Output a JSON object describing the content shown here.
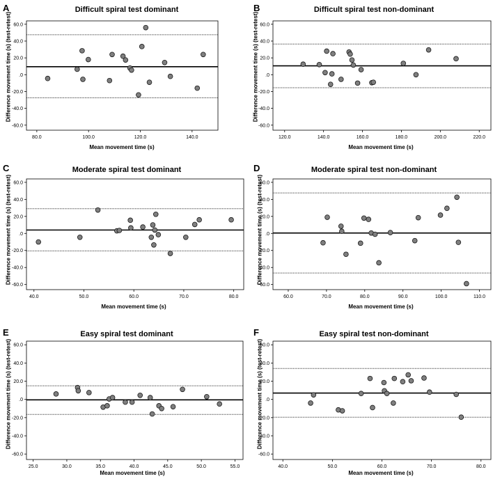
{
  "chart_data": [
    {
      "letter": "A",
      "type": "scatter",
      "title": "Difficult spiral test dominant",
      "xlabel": "Mean movement time (s)",
      "ylabel": "Difference movement time (s) (test-retest)",
      "xlim": [
        76,
        150
      ],
      "ylim": [
        -66,
        64
      ],
      "xticks": [
        80,
        100,
        120,
        140
      ],
      "xtick_labels": [
        "80.0",
        "100.0",
        "120.0",
        "140.0"
      ],
      "yticks": [
        -60,
        -40,
        -20,
        0,
        20,
        40,
        60
      ],
      "ytick_labels": [
        "-60.0",
        "-40.0",
        "-20.0",
        ".0",
        "20.0",
        "40.0",
        "60.0"
      ],
      "mean_line": 9.5,
      "upper_loa": 47.5,
      "lower_loa": -27.5,
      "x": [
        84.2,
        95.6,
        97.5,
        97.8,
        99.9,
        108.1,
        109.1,
        113.3,
        114.3,
        116.0,
        116.6,
        119.3,
        120.6,
        122.1,
        123.5,
        129.4,
        131.6,
        142.0,
        144.3
      ],
      "y": [
        -4.5,
        6.5,
        28.5,
        -5.5,
        18.0,
        -7.0,
        24.0,
        22.0,
        17.5,
        8.0,
        5.5,
        -24.0,
        33.5,
        56.0,
        -9.0,
        14.5,
        -2.0,
        -16.0,
        24.0
      ]
    },
    {
      "letter": "B",
      "type": "scatter",
      "title": "Difficult spiral test non-dominant",
      "xlabel": "Mean movement time (s)",
      "ylabel": "Difference movement time (s) (test-retest)",
      "xlim": [
        114,
        226
      ],
      "ylim": [
        -66,
        64
      ],
      "xticks": [
        120,
        140,
        160,
        180,
        200,
        220
      ],
      "xtick_labels": [
        "120.0",
        "140.0",
        "160.0",
        "180.0",
        "200.0",
        "220.0"
      ],
      "yticks": [
        -60,
        -40,
        -20,
        0,
        20,
        40,
        60
      ],
      "ytick_labels": [
        "-60.0",
        "-40.0",
        "-20.0",
        ".0",
        "20.0",
        "40.0",
        "60.0"
      ],
      "mean_line": 10.5,
      "upper_loa": 36.5,
      "lower_loa": -15.5,
      "x": [
        129.5,
        137.8,
        140.8,
        141.6,
        143.6,
        144.3,
        144.8,
        149.0,
        153.1,
        153.7,
        154.6,
        155.3,
        157.5,
        159.3,
        164.8,
        165.6,
        181.0,
        187.5,
        194.0,
        208.1
      ],
      "y": [
        12.5,
        12.0,
        2.5,
        28.0,
        -11.5,
        1.0,
        25.0,
        -5.5,
        27.0,
        24.5,
        17.5,
        11.5,
        -10.0,
        6.0,
        -9.5,
        -9.0,
        13.5,
        0.0,
        29.5,
        19.0
      ]
    },
    {
      "letter": "C",
      "type": "scatter",
      "title": "Moderate spiral test dominant",
      "xlabel": "Mean movement time (s)",
      "ylabel": "Difference movement time (s) (test-retest)",
      "xlim": [
        38.5,
        82
      ],
      "ylim": [
        -66,
        64
      ],
      "xticks": [
        40,
        50,
        60,
        70,
        80
      ],
      "xtick_labels": [
        "40.0",
        "50.0",
        "60.0",
        "70.0",
        "80.0"
      ],
      "yticks": [
        -60,
        -40,
        -20,
        0,
        20,
        40,
        60
      ],
      "ytick_labels": [
        "-60.0",
        "-40.0",
        "-20.0",
        ".0",
        "20.0",
        "40.0",
        "60.0"
      ],
      "mean_line": 4.0,
      "upper_loa": 29.0,
      "lower_loa": -20.5,
      "x": [
        40.9,
        49.2,
        52.8,
        56.6,
        57.1,
        59.3,
        59.4,
        61.8,
        63.5,
        63.8,
        64.0,
        64.2,
        64.4,
        64.9,
        67.3,
        70.4,
        72.2,
        73.1,
        79.5
      ],
      "y": [
        -10.0,
        -4.5,
        27.5,
        3.0,
        3.5,
        15.5,
        6.5,
        7.5,
        -4.5,
        10.0,
        -13.5,
        4.0,
        22.5,
        -1.5,
        -23.5,
        -4.5,
        10.5,
        16.0,
        16.0
      ]
    },
    {
      "letter": "D",
      "type": "scatter",
      "title": "Moderate spiral test non-dominant",
      "xlabel": "Mean movement time (s)",
      "ylabel": "Difference movement time (s) (test-retest)",
      "xlim": [
        56,
        113
      ],
      "ylim": [
        -66,
        64
      ],
      "xticks": [
        60,
        70,
        80,
        90,
        100,
        110
      ],
      "xtick_labels": [
        "60.0",
        "70.0",
        "80.0",
        "90.0",
        "100.0",
        "110.0"
      ],
      "yticks": [
        -60,
        -40,
        -20,
        0,
        20,
        40,
        60
      ],
      "ytick_labels": [
        "-60.0",
        "-40.0",
        "-20.0",
        ".0",
        "20.0",
        "40.0",
        "60.0"
      ],
      "mean_line": 0.5,
      "upper_loa": 47.5,
      "lower_loa": -46.5,
      "x": [
        69.1,
        70.2,
        73.8,
        74.0,
        75.1,
        78.9,
        79.8,
        81.0,
        81.7,
        82.7,
        83.7,
        86.7,
        93.1,
        94.0,
        99.8,
        101.5,
        104.1,
        104.5,
        106.6
      ],
      "y": [
        -11.0,
        19.0,
        8.5,
        2.5,
        -24.5,
        -11.5,
        18.0,
        16.5,
        0.5,
        -1.0,
        -34.5,
        1.0,
        -8.5,
        18.5,
        21.5,
        29.5,
        42.5,
        -10.5,
        -59.0
      ]
    },
    {
      "letter": "E",
      "type": "scatter",
      "title": "Easy spiral test dominant",
      "xlabel": "Mean movement time (s)",
      "ylabel": "Difference movement time (s) (test-retest)",
      "xlim": [
        24,
        56.2
      ],
      "ylim": [
        -66,
        64
      ],
      "xticks": [
        25,
        30,
        35,
        40,
        45,
        50,
        55
      ],
      "xtick_labels": [
        "25.0",
        "30.0",
        "35.0",
        "40.0",
        "45.0",
        "50.0",
        "55.0"
      ],
      "yticks": [
        -60,
        -40,
        -20,
        0,
        20,
        40,
        60
      ],
      "ytick_labels": [
        "-60.0",
        "-40.0",
        "-20.0",
        ".0",
        "20.0",
        "40.0",
        "60.0"
      ],
      "mean_line": -0.5,
      "upper_loa": 15.0,
      "lower_loa": -16.5,
      "x": [
        28.4,
        31.6,
        31.7,
        33.3,
        35.4,
        36.0,
        36.3,
        36.8,
        38.7,
        39.7,
        40.9,
        42.4,
        42.7,
        43.7,
        44.1,
        45.8,
        47.2,
        50.8,
        52.7
      ],
      "y": [
        6.0,
        13.0,
        9.5,
        7.5,
        -8.5,
        -7.0,
        0.5,
        2.0,
        -3.0,
        -3.0,
        4.5,
        2.0,
        -16.0,
        -7.0,
        -10.0,
        -8.0,
        11.0,
        3.0,
        -5.0
      ]
    },
    {
      "letter": "F",
      "type": "scatter",
      "title": "Easy spiral test non-dominant",
      "xlabel": "Mean movement time (s)",
      "ylabel": "Difference movement time (s) (test-retest)",
      "xlim": [
        38,
        82
      ],
      "ylim": [
        -66,
        64
      ],
      "xticks": [
        40,
        50,
        60,
        70,
        80
      ],
      "xtick_labels": [
        "40.0",
        "50.0",
        "60.0",
        "70.0",
        "80.0"
      ],
      "yticks": [
        -60,
        -40,
        -20,
        0,
        20,
        40,
        60
      ],
      "ytick_labels": [
        "-60.0",
        "-40.0",
        "-20.0",
        ".0",
        "20.0",
        "40.0",
        "60.0"
      ],
      "mean_line": 7.0,
      "upper_loa": 34.0,
      "lower_loa": -19.5,
      "x": [
        45.6,
        46.2,
        51.2,
        52.0,
        55.8,
        57.6,
        58.1,
        60.4,
        60.5,
        61.0,
        62.3,
        62.5,
        64.2,
        65.3,
        65.9,
        68.5,
        69.6,
        75.0,
        76.0
      ],
      "y": [
        -4.0,
        5.0,
        -11.5,
        -12.5,
        6.5,
        23.0,
        -9.0,
        18.5,
        9.5,
        6.5,
        -4.0,
        23.0,
        19.5,
        27.0,
        20.5,
        23.5,
        8.0,
        5.5,
        -19.5
      ]
    }
  ]
}
